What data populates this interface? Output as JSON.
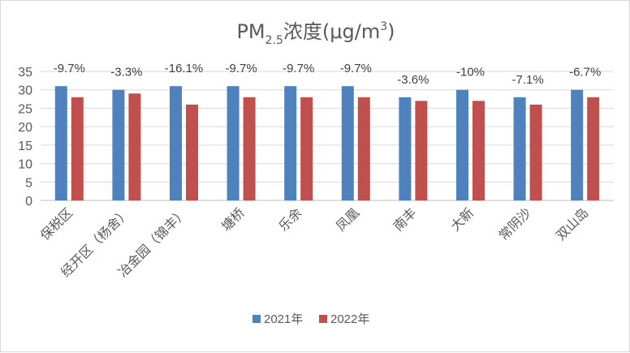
{
  "chart_data": {
    "type": "bar",
    "title": {
      "main": "PM",
      "sub": "2.5",
      "after": "浓度(μg/m",
      "sup": "3",
      "close": ")"
    },
    "categories": [
      "保税区",
      "经开区（杨舍）",
      "冶金园（锦丰）",
      "塘桥",
      "乐余",
      "凤凰",
      "南丰",
      "大新",
      "常阴沙",
      "双山岛"
    ],
    "series": [
      {
        "name": "2021年",
        "color": "#4f81bd",
        "values": [
          31,
          30,
          31,
          31,
          31,
          31,
          28,
          30,
          28,
          30
        ]
      },
      {
        "name": "2022年",
        "color": "#c0504d",
        "values": [
          28,
          29,
          26,
          28,
          28,
          28,
          27,
          27,
          26,
          28
        ]
      }
    ],
    "change_labels": [
      "-9.7%",
      "-3.3%",
      "-16.1%",
      "-9.7%",
      "-9.7%",
      "-9.7%",
      "-3.6%",
      "-10%",
      "-7.1%",
      "-6.7%"
    ],
    "ylim": [
      0,
      35
    ],
    "yticks": [
      0,
      5,
      10,
      15,
      20,
      25,
      30,
      35
    ],
    "grid": true,
    "legend_position": "bottom"
  }
}
